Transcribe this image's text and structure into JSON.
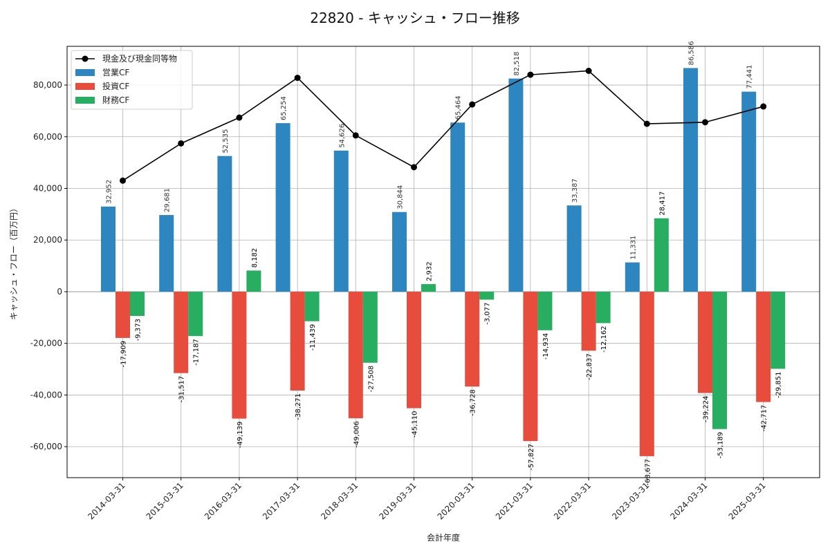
{
  "chart_data": {
    "type": "bar",
    "title": "22820 - キャッシュ・フロー推移",
    "xlabel": "会計年度",
    "ylabel": "キャッシュ・フロー（百万円）",
    "ylim": [
      -72000,
      95000
    ],
    "yticks": [
      -60000,
      -40000,
      -20000,
      0,
      20000,
      40000,
      60000,
      80000
    ],
    "ytick_labels": [
      "-60,000",
      "-40,000",
      "-20,000",
      "0",
      "20,000",
      "40,000",
      "60,000",
      "80,000"
    ],
    "grid": true,
    "legend_position": "top-left",
    "categories": [
      "2014-03-31",
      "2015-03-31",
      "2016-03-31",
      "2017-03-31",
      "2018-03-31",
      "2019-03-31",
      "2020-03-31",
      "2021-03-31",
      "2022-03-31",
      "2023-03-31",
      "2024-03-31",
      "2025-03-31"
    ],
    "series": [
      {
        "name": "営業CF",
        "kind": "bar",
        "color": "#2e86c1",
        "values": [
          32952,
          29681,
          52535,
          65254,
          54626,
          30844,
          65464,
          82518,
          33387,
          11331,
          86586,
          77441
        ],
        "labels": [
          "32,952",
          "29,681",
          "52,535",
          "65,254",
          "54,626",
          "30,844",
          "65,464",
          "82,518",
          "33,387",
          "11,331",
          "86,586",
          "77,441"
        ]
      },
      {
        "name": "投資CF",
        "kind": "bar",
        "color": "#e74c3c",
        "values": [
          -17909,
          -31517,
          -49139,
          -38271,
          -49006,
          -45110,
          -36728,
          -57827,
          -22837,
          -63677,
          -39224,
          -42717
        ],
        "labels": [
          "-17,909",
          "-31,517",
          "-49,139",
          "-38,271",
          "-49,006",
          "-45,110",
          "-36,728",
          "-57,827",
          "-22,837",
          "-63,677",
          "-39,224",
          "-42,717"
        ]
      },
      {
        "name": "財務CF",
        "kind": "bar",
        "color": "#27ae60",
        "values": [
          -9373,
          -17187,
          8182,
          -11439,
          -27508,
          2932,
          -3077,
          -14934,
          -12162,
          28417,
          -53189,
          -29851
        ],
        "labels": [
          "-9,373",
          "-17,187",
          "8,182",
          "-11,439",
          "-27,508",
          "2,932",
          "-3,077",
          "-14,934",
          "-12,162",
          "28,417",
          "-53,189",
          "-29,851"
        ]
      },
      {
        "name": "現金及び現金同等物",
        "kind": "line",
        "color": "#000000",
        "values": [
          43000,
          57400,
          67400,
          82800,
          60500,
          48200,
          72500,
          84000,
          85500,
          65000,
          65600,
          71700
        ]
      }
    ]
  }
}
